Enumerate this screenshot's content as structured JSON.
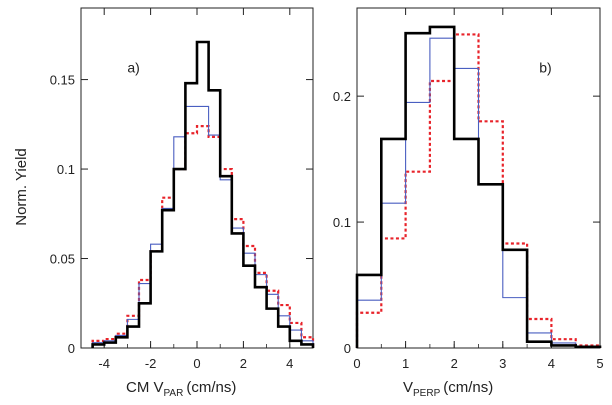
{
  "chart_data": [
    {
      "type": "histogram",
      "panel_label": "a)",
      "ylabel": "Norm. Yield",
      "xlabel_main": "CM V",
      "xlabel_sub": "PAR",
      "xlabel_unit": "(cm/ns)",
      "xlim": [
        -5,
        5
      ],
      "ylim": [
        0,
        0.19
      ],
      "xticks": [
        -4,
        -2,
        0,
        2,
        4
      ],
      "ytick_values": [
        0,
        0.05,
        0.1,
        0.15
      ],
      "ytick_labels": [
        "0",
        "0.05",
        "0.1",
        "0.15"
      ],
      "bin_edges": [
        -4.5,
        -4,
        -3.5,
        -3,
        -2.5,
        -2,
        -1.5,
        -1,
        -0.5,
        0,
        0.5,
        1,
        1.5,
        2,
        2.5,
        3,
        3.5,
        4,
        4.5,
        5
      ],
      "series": [
        {
          "color": "#000000",
          "style": "solid-thick",
          "values": [
            0.002,
            0.003,
            0.006,
            0.012,
            0.025,
            0.054,
            0.077,
            0.1,
            0.148,
            0.171,
            0.144,
            0.096,
            0.064,
            0.046,
            0.034,
            0.022,
            0.012,
            0.004,
            0.002
          ]
        },
        {
          "color": "#4a5fc1",
          "style": "solid-thin",
          "values": [
            0.003,
            0.004,
            0.007,
            0.016,
            0.036,
            0.058,
            0.078,
            0.118,
            0.135,
            0.135,
            0.119,
            0.094,
            0.067,
            0.053,
            0.041,
            0.03,
            0.018,
            0.01,
            0.004
          ]
        },
        {
          "color": "#e8232a",
          "style": "dotted",
          "values": [
            0.004,
            0.005,
            0.008,
            0.018,
            0.038,
            0.054,
            0.084,
            0.1,
            0.12,
            0.124,
            0.118,
            0.1,
            0.072,
            0.057,
            0.042,
            0.032,
            0.024,
            0.014,
            0.006
          ]
        }
      ]
    },
    {
      "type": "histogram",
      "panel_label": "b)",
      "xlabel_main": "V",
      "xlabel_sub": "PERP",
      "xlabel_unit": "(cm/ns)",
      "xlim": [
        0,
        5
      ],
      "ylim": [
        0,
        0.27
      ],
      "xticks": [
        0,
        1,
        2,
        3,
        4,
        5
      ],
      "ytick_values": [
        0,
        0.1,
        0.2
      ],
      "ytick_labels": [
        "0",
        "0.1",
        "0.2"
      ],
      "bin_edges": [
        0,
        0.5,
        1,
        1.5,
        2,
        2.5,
        3,
        3.5,
        4,
        4.5,
        5
      ],
      "series": [
        {
          "color": "#000000",
          "style": "solid-thick",
          "values": [
            0.058,
            0.166,
            0.25,
            0.255,
            0.166,
            0.13,
            0.078,
            0.005,
            0.002,
            0.001
          ]
        },
        {
          "color": "#4a5fc1",
          "style": "solid-thin",
          "values": [
            0.038,
            0.115,
            0.195,
            0.246,
            0.222,
            0.13,
            0.04,
            0.012,
            0.004,
            0.001
          ]
        },
        {
          "color": "#e8232a",
          "style": "dotted",
          "values": [
            0.028,
            0.087,
            0.14,
            0.212,
            0.249,
            0.18,
            0.083,
            0.023,
            0.007,
            0.002
          ]
        }
      ]
    }
  ]
}
